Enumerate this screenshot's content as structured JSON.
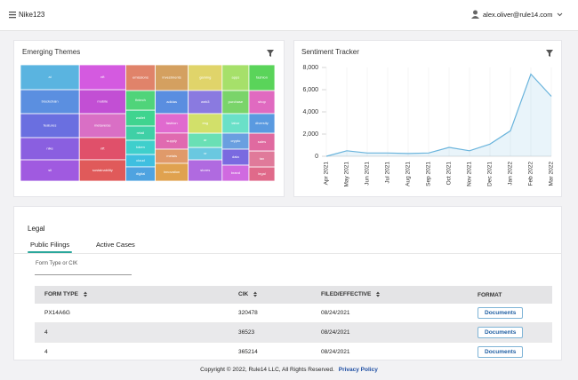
{
  "header": {
    "title": "Nike123",
    "user": "alex.oliver@rule14.com"
  },
  "emerging_themes": {
    "title": "Emerging Themes",
    "columns": [
      {
        "tiles": [
          {
            "label": "ai",
            "value": 18.5,
            "color": "#5ab4e0"
          },
          {
            "label": "blockchain",
            "value": 17.8,
            "color": "#5b8fe0"
          },
          {
            "label": "features",
            "value": 17.8,
            "color": "#6a6fe0"
          },
          {
            "label": "nike",
            "value": 16.5,
            "color": "#8a5fe0"
          },
          {
            "label": "sli",
            "value": 15.8,
            "color": "#a05ae0"
          }
        ]
      },
      {
        "tiles": [
          {
            "label": "nft",
            "value": 14.6,
            "color": "#d45ae0"
          },
          {
            "label": "mobile",
            "value": 14.0,
            "color": "#c24fd4"
          },
          {
            "label": "metaverse",
            "value": 14.0,
            "color": "#d96fc5"
          },
          {
            "label": "nft",
            "value": 13.0,
            "color": "#e0506a"
          },
          {
            "label": "sustainability",
            "value": 12.5,
            "color": "#e05a5a"
          }
        ]
      },
      {
        "tiles": [
          {
            "label": "emissions",
            "value": 9.6,
            "color": "#e0836a"
          },
          {
            "label": "fintech",
            "value": 7.3,
            "color": "#50d47a"
          },
          {
            "label": "wallet",
            "value": 5.9,
            "color": "#3fd48f"
          },
          {
            "label": "retail",
            "value": 5.3,
            "color": "#3fd0a6"
          },
          {
            "label": "token",
            "value": 5.3,
            "color": "#3fcfcc"
          },
          {
            "label": "cloud",
            "value": 4.6,
            "color": "#3fbfe0"
          },
          {
            "label": "digital",
            "value": 5.3,
            "color": "#4fa3e0"
          }
        ]
      },
      {
        "tiles": [
          {
            "label": "investments",
            "value": 10.7,
            "color": "#d4a060"
          },
          {
            "label": "adidas",
            "value": 9.6,
            "color": "#5a8ee0"
          },
          {
            "label": "fashion",
            "value": 8.1,
            "color": "#e06acf"
          },
          {
            "label": "supply",
            "value": 6.7,
            "color": "#e06ab0"
          },
          {
            "label": "metals",
            "value": 5.9,
            "color": "#e09a6a"
          },
          {
            "label": "innovation",
            "value": 7.4,
            "color": "#e0a24f"
          }
        ]
      },
      {
        "tiles": [
          {
            "label": "gaming",
            "value": 11.0,
            "color": "#e0d46a"
          },
          {
            "label": "web3",
            "value": 9.9,
            "color": "#8a7ae0"
          },
          {
            "label": "esg",
            "value": 8.4,
            "color": "#d2e06a"
          },
          {
            "label": "ar",
            "value": 6.1,
            "color": "#6ae0b5"
          },
          {
            "label": "vr",
            "value": 5.3,
            "color": "#6ac8e0"
          },
          {
            "label": "stores",
            "value": 9.1,
            "color": "#b06ae0"
          }
        ]
      },
      {
        "tiles": [
          {
            "label": "apps",
            "value": 8.7,
            "color": "#a6e06a"
          },
          {
            "label": "purchase",
            "value": 7.8,
            "color": "#7ad46a"
          },
          {
            "label": "labor",
            "value": 6.6,
            "color": "#6ae0c8"
          },
          {
            "label": "crypto",
            "value": 5.4,
            "color": "#6a9fe0"
          },
          {
            "label": "data",
            "value": 5.4,
            "color": "#7a6ae0"
          },
          {
            "label": "brand",
            "value": 5.4,
            "color": "#d06ae0"
          }
        ]
      },
      {
        "tiles": [
          {
            "label": "fashion",
            "value": 8.4,
            "color": "#5ad45a"
          },
          {
            "label": "shop",
            "value": 7.5,
            "color": "#e06ac0"
          },
          {
            "label": "diversity",
            "value": 6.4,
            "color": "#5a9ae0"
          },
          {
            "label": "sales",
            "value": 5.8,
            "color": "#e06aa0"
          },
          {
            "label": "tax",
            "value": 5.2,
            "color": "#e07a9a"
          },
          {
            "label": "legal",
            "value": 4.6,
            "color": "#e06a8a"
          }
        ]
      }
    ]
  },
  "chart_data": {
    "type": "line",
    "title": "Sentiment Tracker",
    "x": [
      "Apr 2021",
      "May 2021",
      "Jun 2021",
      "Jul 2021",
      "Aug 2021",
      "Sep 2021",
      "Oct 2021",
      "Nov 2021",
      "Dec 2021",
      "Jan 2022",
      "Feb 2022",
      "Mar 2022"
    ],
    "values": [
      0,
      500,
      300,
      300,
      250,
      300,
      800,
      500,
      1100,
      2300,
      7400,
      5400
    ],
    "color": "#6ab4dc",
    "ylim": [
      0,
      8000
    ],
    "yticks": [
      0,
      {
        "value": 2000,
        "label": "2,000"
      },
      {
        "value": 4000,
        "label": "4,000"
      },
      {
        "value": 6000,
        "label": "6,000"
      },
      {
        "value": 8000,
        "label": "8,000"
      }
    ]
  },
  "legal": {
    "title": "Legal",
    "tabs": [
      "Public Filings",
      "Active Cases"
    ],
    "search_placeholder": "Form Type or CIK",
    "table": {
      "columns": [
        "FORM TYPE",
        "CIK",
        "FILED/EFFECTIVE",
        "FORMAT"
      ],
      "rows": [
        [
          "PX14A6G",
          "320478",
          "08/24/2021",
          "Documents"
        ],
        [
          "4",
          "36523",
          "08/24/2021",
          "Documents"
        ],
        [
          "4",
          "365214",
          "08/24/2021",
          "Documents"
        ]
      ]
    }
  },
  "footer": {
    "copyright": "Copyright © 2022, Rule14 LLC, All Rights Reserved.",
    "link": "Privacy Policy"
  }
}
